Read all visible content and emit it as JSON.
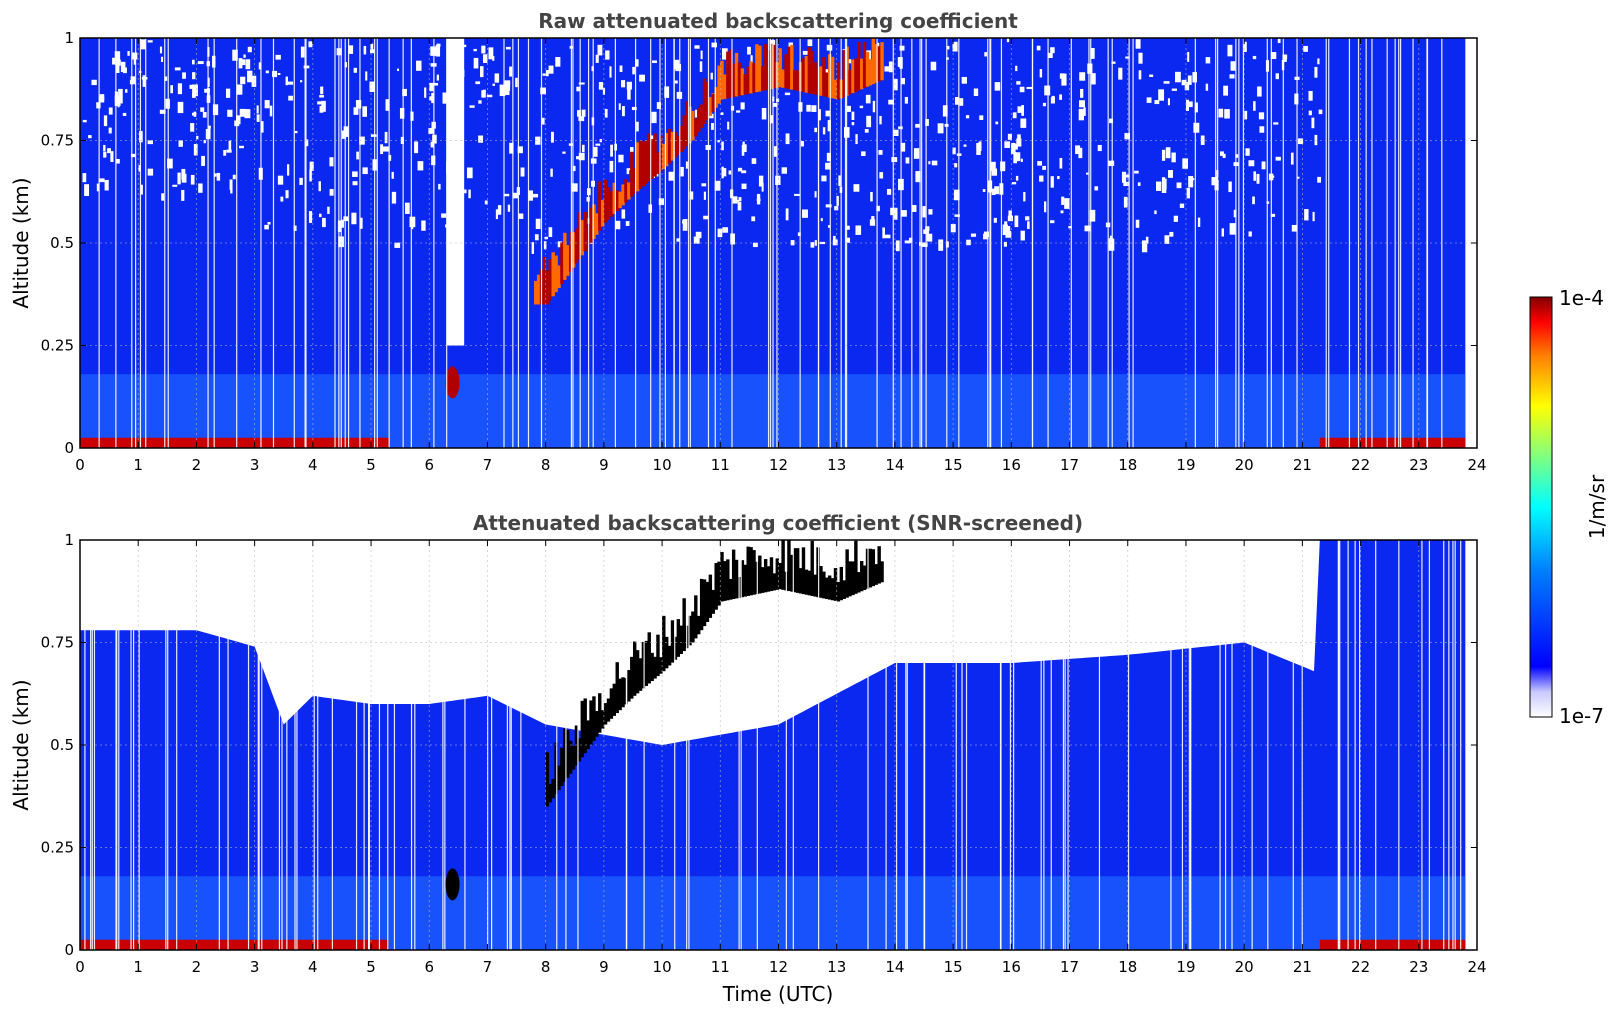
{
  "chart_data": [
    {
      "type": "heatmap",
      "title": "Raw attenuated backscattering coefficient",
      "xlabel": "",
      "ylabel": "Altitude (km)",
      "xlim": [
        0,
        24
      ],
      "ylim": [
        0,
        1
      ],
      "x_ticks": [
        "0",
        "1",
        "2",
        "3",
        "4",
        "5",
        "6",
        "7",
        "8",
        "9",
        "10",
        "11",
        "12",
        "13",
        "14",
        "15",
        "16",
        "17",
        "18",
        "19",
        "20",
        "21",
        "22",
        "23",
        "24"
      ],
      "y_ticks": [
        "0",
        "0.25",
        "0.5",
        "0.75",
        "1"
      ],
      "grid": true,
      "screened": false,
      "colorscale": "jet",
      "features": {
        "cloud_layer": {
          "x": [
            8.0,
            8.5,
            9.0,
            9.5,
            10.0,
            10.5,
            11.0,
            12.0,
            13.0,
            13.8
          ],
          "y": [
            0.35,
            0.45,
            0.55,
            0.62,
            0.68,
            0.75,
            0.85,
            0.88,
            0.85,
            0.9
          ]
        },
        "gap_times": [
          6.3
        ],
        "surface_high_periods": [
          [
            0,
            5.3
          ],
          [
            21.3,
            23.8
          ]
        ]
      }
    },
    {
      "type": "heatmap",
      "title": "Attenuated backscattering coefficient (SNR-screened)",
      "xlabel": "Time (UTC)",
      "ylabel": "Altitude (km)",
      "xlim": [
        0,
        24
      ],
      "ylim": [
        0,
        1
      ],
      "x_ticks": [
        "0",
        "1",
        "2",
        "3",
        "4",
        "5",
        "6",
        "7",
        "8",
        "9",
        "10",
        "11",
        "12",
        "13",
        "14",
        "15",
        "16",
        "17",
        "18",
        "19",
        "20",
        "21",
        "22",
        "23",
        "24"
      ],
      "y_ticks": [
        "0",
        "0.25",
        "0.5",
        "0.75",
        "1"
      ],
      "grid": true,
      "screened": true,
      "colorscale": "jet",
      "features": {
        "boundary_layer_top": {
          "x": [
            0,
            1,
            2,
            3,
            3.5,
            4,
            5,
            6,
            7,
            8,
            10,
            12,
            14,
            16,
            18,
            20,
            21.2,
            21.3,
            24
          ],
          "y": [
            0.78,
            0.78,
            0.78,
            0.74,
            0.55,
            0.62,
            0.6,
            0.6,
            0.62,
            0.55,
            0.5,
            0.55,
            0.7,
            0.7,
            0.72,
            0.75,
            0.68,
            1.0,
            1.0
          ]
        }
      }
    }
  ],
  "colorbar": {
    "label": "1/m/sr",
    "max_label": "1e-4",
    "min_label": "1e-7",
    "scale": "log",
    "range": [
      1e-07,
      0.0001
    ]
  }
}
